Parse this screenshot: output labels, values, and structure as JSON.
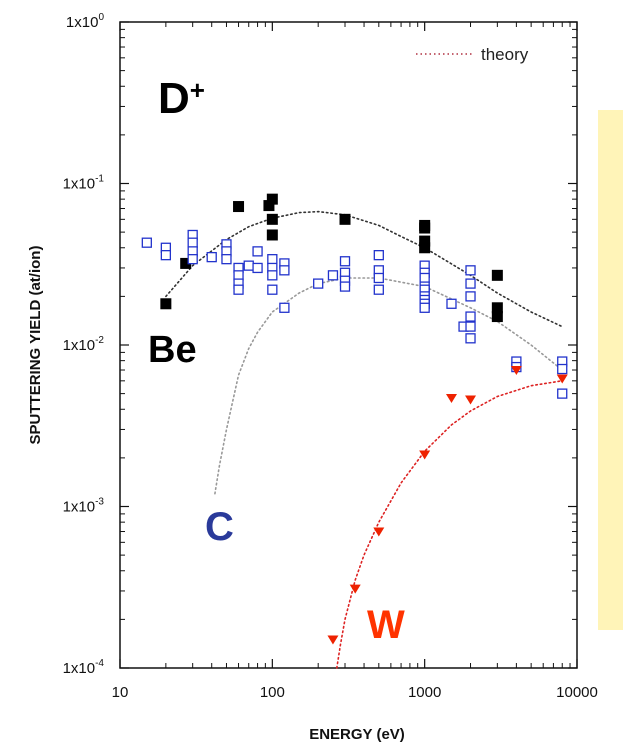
{
  "chart_data": {
    "type": "scatter",
    "xlabel": "ENERGY (eV)",
    "ylabel": "SPUTTERING YIELD (at/ion)",
    "xscale": "log",
    "yscale": "log",
    "xlim": [
      10,
      10000
    ],
    "ylim": [
      0.0001,
      1
    ],
    "x_tick_values": [
      10,
      100,
      1000,
      10000
    ],
    "x_tick_labels": [
      "10",
      "100",
      "1000",
      "10000"
    ],
    "y_tick_values": [
      0.0001,
      0.001,
      0.01,
      0.1,
      1
    ],
    "y_tick_labels": [
      "1x10-4",
      "1x10-3",
      "1x10-2",
      "1x10-1",
      "1x100"
    ],
    "y_tick_exponents": [
      "-4",
      "-3",
      "-2",
      "-1",
      "0"
    ],
    "y_tick_base": "1x10",
    "legend": {
      "position": "top-right",
      "entries": [
        {
          "label": "theory",
          "style": "dotted",
          "color": "#b03040"
        }
      ]
    },
    "annotations": {
      "ion": "D",
      "ion_charge": "+",
      "be": "Be",
      "c": "C",
      "w": "W"
    },
    "colors": {
      "be": "#000000",
      "c": "#2233cc",
      "w": "#ee2200",
      "c_label": "#2a3a9a",
      "w_label": "#ff3300",
      "theory_legend": "#b03040"
    },
    "series": [
      {
        "name": "Be",
        "marker": "filled-square",
        "x": [
          20,
          27,
          60,
          95,
          100,
          100,
          100,
          300,
          1000,
          1000,
          1000,
          1000,
          3000,
          3000,
          3000
        ],
        "y": [
          0.018,
          0.032,
          0.072,
          0.073,
          0.08,
          0.06,
          0.048,
          0.06,
          0.055,
          0.044,
          0.04,
          0.053,
          0.027,
          0.017,
          0.015
        ]
      },
      {
        "name": "C",
        "marker": "open-square",
        "x": [
          15,
          20,
          20,
          30,
          30,
          30,
          30,
          40,
          50,
          50,
          50,
          60,
          60,
          60,
          60,
          70,
          80,
          80,
          100,
          100,
          100,
          100,
          120,
          120,
          120,
          200,
          250,
          300,
          300,
          300,
          300,
          500,
          500,
          500,
          500,
          1000,
          1000,
          1000,
          1000,
          1000,
          1000,
          1000,
          1000,
          1000,
          1500,
          1800,
          2000,
          2000,
          2000,
          2000,
          2000,
          2000,
          4000,
          4000,
          8000,
          8000,
          8000
        ],
        "y": [
          0.043,
          0.04,
          0.036,
          0.048,
          0.043,
          0.038,
          0.034,
          0.035,
          0.042,
          0.038,
          0.034,
          0.03,
          0.027,
          0.024,
          0.022,
          0.031,
          0.038,
          0.03,
          0.034,
          0.03,
          0.027,
          0.022,
          0.032,
          0.029,
          0.017,
          0.024,
          0.027,
          0.033,
          0.028,
          0.025,
          0.023,
          0.036,
          0.029,
          0.026,
          0.022,
          0.031,
          0.028,
          0.026,
          0.023,
          0.022,
          0.02,
          0.019,
          0.018,
          0.017,
          0.018,
          0.013,
          0.029,
          0.024,
          0.02,
          0.015,
          0.013,
          0.011,
          0.0079,
          0.0073,
          0.0079,
          0.0071,
          0.005
        ]
      },
      {
        "name": "W",
        "marker": "filled-triangle-down",
        "x": [
          250,
          350,
          500,
          1000,
          1500,
          2000,
          4000,
          8000
        ],
        "y": [
          0.00015,
          0.00031,
          0.0007,
          0.0021,
          0.0047,
          0.0046,
          0.007,
          0.0062
        ]
      }
    ],
    "theory_curves": [
      {
        "target": "Be",
        "color": "#333333",
        "x": [
          20,
          30,
          50,
          70,
          100,
          150,
          200,
          300,
          500,
          700,
          1000,
          2000,
          3000,
          5000,
          8000
        ],
        "y": [
          0.02,
          0.031,
          0.045,
          0.054,
          0.061,
          0.066,
          0.067,
          0.064,
          0.055,
          0.047,
          0.04,
          0.027,
          0.021,
          0.016,
          0.013
        ]
      },
      {
        "target": "C",
        "color": "#999999",
        "x": [
          42,
          45,
          50,
          60,
          70,
          80,
          100,
          150,
          200,
          300,
          500,
          1000,
          2000,
          3000,
          5000,
          8000
        ],
        "y": [
          0.0012,
          0.0018,
          0.003,
          0.0065,
          0.0095,
          0.012,
          0.016,
          0.021,
          0.024,
          0.026,
          0.026,
          0.023,
          0.017,
          0.014,
          0.01,
          0.007
        ]
      },
      {
        "target": "W",
        "color": "#dd2222",
        "x": [
          265,
          280,
          300,
          350,
          400,
          500,
          700,
          1000,
          1500,
          2000,
          3000,
          5000,
          8000
        ],
        "y": [
          0.0001,
          0.00014,
          0.0002,
          0.00035,
          0.0005,
          0.0008,
          0.0014,
          0.0022,
          0.0032,
          0.0039,
          0.0048,
          0.0056,
          0.006
        ]
      }
    ]
  }
}
